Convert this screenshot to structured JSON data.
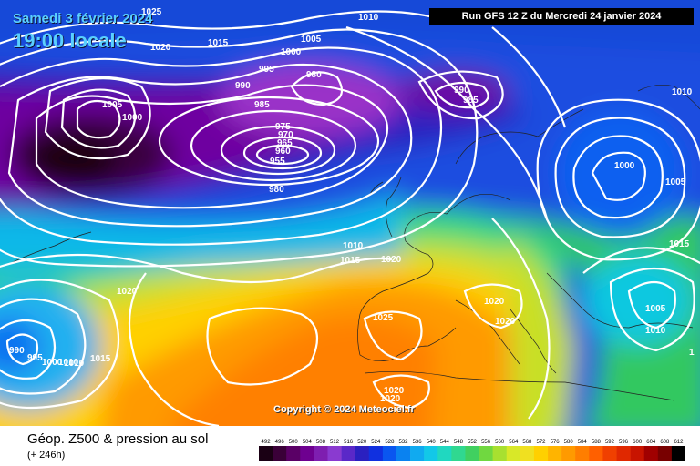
{
  "header": {
    "date": "Samedi 3 février 2024",
    "time": "19:00 locale",
    "run": "Run GFS 12 Z du Mercredi 24 janvier 2024",
    "copyright": "Copyright © 2024 Meteociel.fr"
  },
  "footer": {
    "title": "Géop. Z500 & pression au sol",
    "subtitle": "(+ 246h)"
  },
  "legend": {
    "values": [
      "492",
      "496",
      "500",
      "504",
      "508",
      "512",
      "516",
      "520",
      "524",
      "528",
      "532",
      "536",
      "540",
      "544",
      "548",
      "552",
      "556",
      "560",
      "564",
      "568",
      "572",
      "576",
      "580",
      "584",
      "588",
      "592",
      "596",
      "600",
      "604",
      "608",
      "612"
    ],
    "colors": [
      "#1a0014",
      "#3a0038",
      "#5a0066",
      "#6e0090",
      "#7e1eb0",
      "#8a3ad0",
      "#5a28c8",
      "#2a20c0",
      "#1030e0",
      "#0a56f0",
      "#0a82f0",
      "#10aaf0",
      "#12c8e8",
      "#20d8c0",
      "#30d890",
      "#40d060",
      "#70d840",
      "#a8e030",
      "#d8e828",
      "#f0e020",
      "#ffd000",
      "#ffb400",
      "#ff9a00",
      "#ff7e00",
      "#ff6000",
      "#f04000",
      "#e02800",
      "#c81400",
      "#a00000",
      "#780000",
      "#000000"
    ]
  },
  "isobars": [
    {
      "text": "1025"
    },
    {
      "text": "1020"
    },
    {
      "text": "1015"
    },
    {
      "text": "1010"
    },
    {
      "text": "1005"
    },
    {
      "text": "1000"
    },
    {
      "text": "995"
    },
    {
      "text": "990"
    },
    {
      "text": "985"
    },
    {
      "text": "980"
    },
    {
      "text": "975"
    },
    {
      "text": "970"
    },
    {
      "text": "965"
    },
    {
      "text": "960"
    },
    {
      "text": "955"
    },
    {
      "text": "990"
    },
    {
      "text": "985"
    },
    {
      "text": "1010"
    },
    {
      "text": "1000"
    },
    {
      "text": "1005"
    },
    {
      "text": "1015"
    },
    {
      "text": "1005"
    },
    {
      "text": "1000"
    },
    {
      "text": "980"
    },
    {
      "text": "1010"
    },
    {
      "text": "1015"
    },
    {
      "text": "1020"
    },
    {
      "text": "1020"
    },
    {
      "text": "1025"
    },
    {
      "text": "1020"
    },
    {
      "text": "1020"
    },
    {
      "text": "1005"
    },
    {
      "text": "1010"
    },
    {
      "text": "990"
    },
    {
      "text": "995"
    },
    {
      "text": "1000"
    },
    {
      "text": "1010"
    },
    {
      "text": "1015"
    },
    {
      "text": "1020"
    },
    {
      "text": "1020"
    },
    {
      "text": "1010"
    },
    {
      "text": "1"
    }
  ]
}
